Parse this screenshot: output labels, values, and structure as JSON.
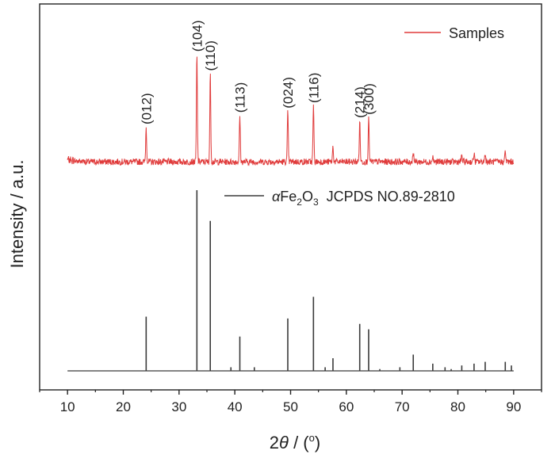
{
  "chart_data": {
    "type": "line",
    "xlabel_prefix": "2",
    "xlabel_theta": "θ",
    "xlabel_suffix": " / (",
    "xlabel_degree": "o",
    "xlabel_close": ")",
    "ylabel": "Intensity / a.u.",
    "xlim": [
      5,
      95
    ],
    "x_ticks": [
      10,
      20,
      30,
      40,
      50,
      60,
      70,
      80,
      90
    ],
    "grid": false,
    "legend_position": "top-right",
    "series": [
      {
        "name": "Samples",
        "color": "#e03c3c",
        "baseline_level": 0.08,
        "noise_level": 0.03,
        "peaks": [
          {
            "x": 24.1,
            "h": 0.32
          },
          {
            "x": 33.2,
            "h": 1.0
          },
          {
            "x": 35.6,
            "h": 0.82
          },
          {
            "x": 40.9,
            "h": 0.43
          },
          {
            "x": 49.5,
            "h": 0.47
          },
          {
            "x": 54.1,
            "h": 0.52
          },
          {
            "x": 57.6,
            "h": 0.14
          },
          {
            "x": 62.4,
            "h": 0.38
          },
          {
            "x": 64.0,
            "h": 0.41
          },
          {
            "x": 72.0,
            "h": 0.1
          },
          {
            "x": 75.5,
            "h": 0.05
          },
          {
            "x": 80.7,
            "h": 0.06
          },
          {
            "x": 82.9,
            "h": 0.08
          },
          {
            "x": 84.9,
            "h": 0.08
          },
          {
            "x": 88.5,
            "h": 0.1
          }
        ]
      },
      {
        "name_prefix": "α",
        "name_main": "Fe",
        "name_sub1": "2",
        "name_mid": "O",
        "name_sub2": "3",
        "name_suffix": "  JCPDS NO.89-2810",
        "color": "#3a3a3a",
        "lines": [
          {
            "x": 24.1,
            "h": 0.3
          },
          {
            "x": 33.2,
            "h": 1.0
          },
          {
            "x": 35.6,
            "h": 0.83
          },
          {
            "x": 39.3,
            "h": 0.02
          },
          {
            "x": 40.9,
            "h": 0.19
          },
          {
            "x": 43.5,
            "h": 0.02
          },
          {
            "x": 49.5,
            "h": 0.29
          },
          {
            "x": 54.1,
            "h": 0.41
          },
          {
            "x": 56.2,
            "h": 0.02
          },
          {
            "x": 57.6,
            "h": 0.07
          },
          {
            "x": 62.4,
            "h": 0.26
          },
          {
            "x": 64.0,
            "h": 0.23
          },
          {
            "x": 66.0,
            "h": 0.01
          },
          {
            "x": 69.6,
            "h": 0.02
          },
          {
            "x": 72.0,
            "h": 0.09
          },
          {
            "x": 75.5,
            "h": 0.04
          },
          {
            "x": 77.7,
            "h": 0.02
          },
          {
            "x": 78.8,
            "h": 0.01
          },
          {
            "x": 80.7,
            "h": 0.03
          },
          {
            "x": 82.9,
            "h": 0.04
          },
          {
            "x": 84.9,
            "h": 0.05
          },
          {
            "x": 88.5,
            "h": 0.05
          },
          {
            "x": 89.6,
            "h": 0.03
          }
        ]
      }
    ],
    "annotations": [
      {
        "text": "(012)",
        "x": 24.1
      },
      {
        "text": "(104)",
        "x": 33.2
      },
      {
        "text": "(110)",
        "x": 35.6
      },
      {
        "text": "(113)",
        "x": 40.9
      },
      {
        "text": "(024)",
        "x": 49.5
      },
      {
        "text": "(116)",
        "x": 54.1
      },
      {
        "text": "(214)",
        "x": 62.4
      },
      {
        "text": "(300)",
        "x": 64.0
      }
    ]
  }
}
